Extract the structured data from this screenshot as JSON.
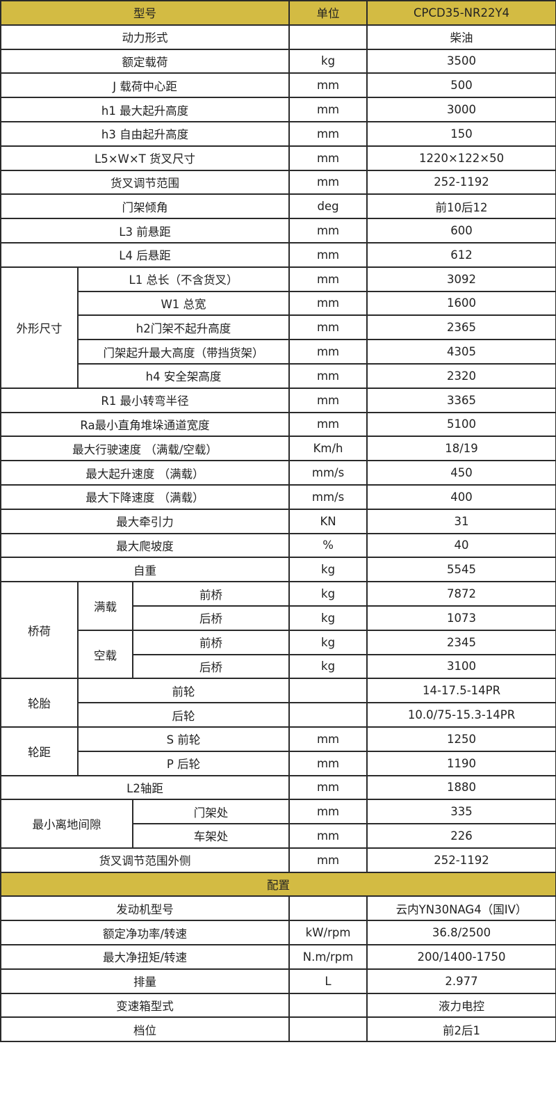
{
  "colors": {
    "header_bg": "#d3bb43",
    "border": "#2a2a2a",
    "text": "#222222"
  },
  "header": {
    "model_label": "型号",
    "unit_label": "单位",
    "model_value": "CPCD35-NR22Y4"
  },
  "blocks": [
    {
      "type": "row",
      "label": "动力形式",
      "unit": "",
      "value": "柴油"
    },
    {
      "type": "row",
      "label": "额定载荷",
      "unit": "kg",
      "value": "3500"
    },
    {
      "type": "row",
      "label": "J 载荷中心距",
      "unit": "mm",
      "value": "500"
    },
    {
      "type": "row",
      "label": "h1 最大起升高度",
      "unit": "mm",
      "value": "3000"
    },
    {
      "type": "row",
      "label": "h3 自由起升高度",
      "unit": "mm",
      "value": "150"
    },
    {
      "type": "row",
      "label": "L5×W×T 货叉尺寸",
      "unit": "mm",
      "value": "1220×122×50"
    },
    {
      "type": "row",
      "label": "货叉调节范围",
      "unit": "mm",
      "value": "252-1192"
    },
    {
      "type": "row",
      "label": "门架倾角",
      "unit": "deg",
      "value": "前10后12"
    },
    {
      "type": "row",
      "label": "L3 前悬距",
      "unit": "mm",
      "value": "600"
    },
    {
      "type": "row",
      "label": "L4 后悬距",
      "unit": "mm",
      "value": "612"
    },
    {
      "type": "group",
      "group": "外形尺寸",
      "items": [
        {
          "label": "L1 总长（不含货叉）",
          "unit": "mm",
          "value": "3092"
        },
        {
          "label": "W1 总宽",
          "unit": "mm",
          "value": "1600"
        },
        {
          "label": "h2门架不起升高度",
          "unit": "mm",
          "value": "2365"
        },
        {
          "label": "门架起升最大高度（带挡货架）",
          "unit": "mm",
          "value": "4305"
        },
        {
          "label": "h4 安全架高度",
          "unit": "mm",
          "value": "2320"
        }
      ]
    },
    {
      "type": "row",
      "label": "R1 最小转弯半径",
      "unit": "mm",
      "value": "3365"
    },
    {
      "type": "row",
      "label": "Ra最小直角堆垛通道宽度",
      "unit": "mm",
      "value": "5100"
    },
    {
      "type": "row",
      "label": "最大行驶速度 （满载/空载）",
      "unit": "Km/h",
      "value": "18/19"
    },
    {
      "type": "row",
      "label": "最大起升速度 （满载）",
      "unit": "mm/s",
      "value": "450"
    },
    {
      "type": "row",
      "label": "最大下降速度 （满载）",
      "unit": "mm/s",
      "value": "400"
    },
    {
      "type": "row",
      "label": "最大牵引力",
      "unit": "KN",
      "value": "31"
    },
    {
      "type": "row",
      "label": "最大爬坡度",
      "unit": "%",
      "value": "40"
    },
    {
      "type": "row",
      "label": "自重",
      "unit": "kg",
      "value": "5545"
    },
    {
      "type": "nested",
      "group": "桥荷",
      "subgroups": [
        {
          "name": "满载",
          "items": [
            {
              "label": "前桥",
              "unit": "kg",
              "value": "7872"
            },
            {
              "label": "后桥",
              "unit": "kg",
              "value": "1073"
            }
          ]
        },
        {
          "name": "空载",
          "items": [
            {
              "label": "前桥",
              "unit": "kg",
              "value": "2345"
            },
            {
              "label": "后桥",
              "unit": "kg",
              "value": "3100"
            }
          ]
        }
      ]
    },
    {
      "type": "group",
      "group": "轮胎",
      "items": [
        {
          "label": "前轮",
          "unit": "",
          "value": "14-17.5-14PR"
        },
        {
          "label": "后轮",
          "unit": "",
          "value": "10.0/75-15.3-14PR"
        }
      ]
    },
    {
      "type": "group",
      "group": "轮距",
      "items": [
        {
          "label": "S 前轮",
          "unit": "mm",
          "value": "1250"
        },
        {
          "label": "P 后轮",
          "unit": "mm",
          "value": "1190"
        }
      ]
    },
    {
      "type": "row",
      "label": "L2轴距",
      "unit": "mm",
      "value": "1880"
    },
    {
      "type": "widegroup",
      "group": "最小离地间隙",
      "items": [
        {
          "label": "门架处",
          "unit": "mm",
          "value": "335"
        },
        {
          "label": "车架处",
          "unit": "mm",
          "value": "226"
        }
      ]
    },
    {
      "type": "row",
      "label": "货叉调节范围外侧",
      "unit": "mm",
      "value": "252-1192"
    },
    {
      "type": "section",
      "label": "配置"
    },
    {
      "type": "row",
      "label": "发动机型号",
      "unit": "",
      "value": "云内YN30NAG4（国IV）"
    },
    {
      "type": "row",
      "label": "额定净功率/转速",
      "unit": "kW/rpm",
      "value": "36.8/2500"
    },
    {
      "type": "row",
      "label": "最大净扭矩/转速",
      "unit": "N.m/rpm",
      "value": "200/1400-1750"
    },
    {
      "type": "row",
      "label": "排量",
      "unit": "L",
      "value": "2.977"
    },
    {
      "type": "row",
      "label": "变速箱型式",
      "unit": "",
      "value": "液力电控"
    },
    {
      "type": "row",
      "label": "档位",
      "unit": "",
      "value": "前2后1"
    }
  ]
}
